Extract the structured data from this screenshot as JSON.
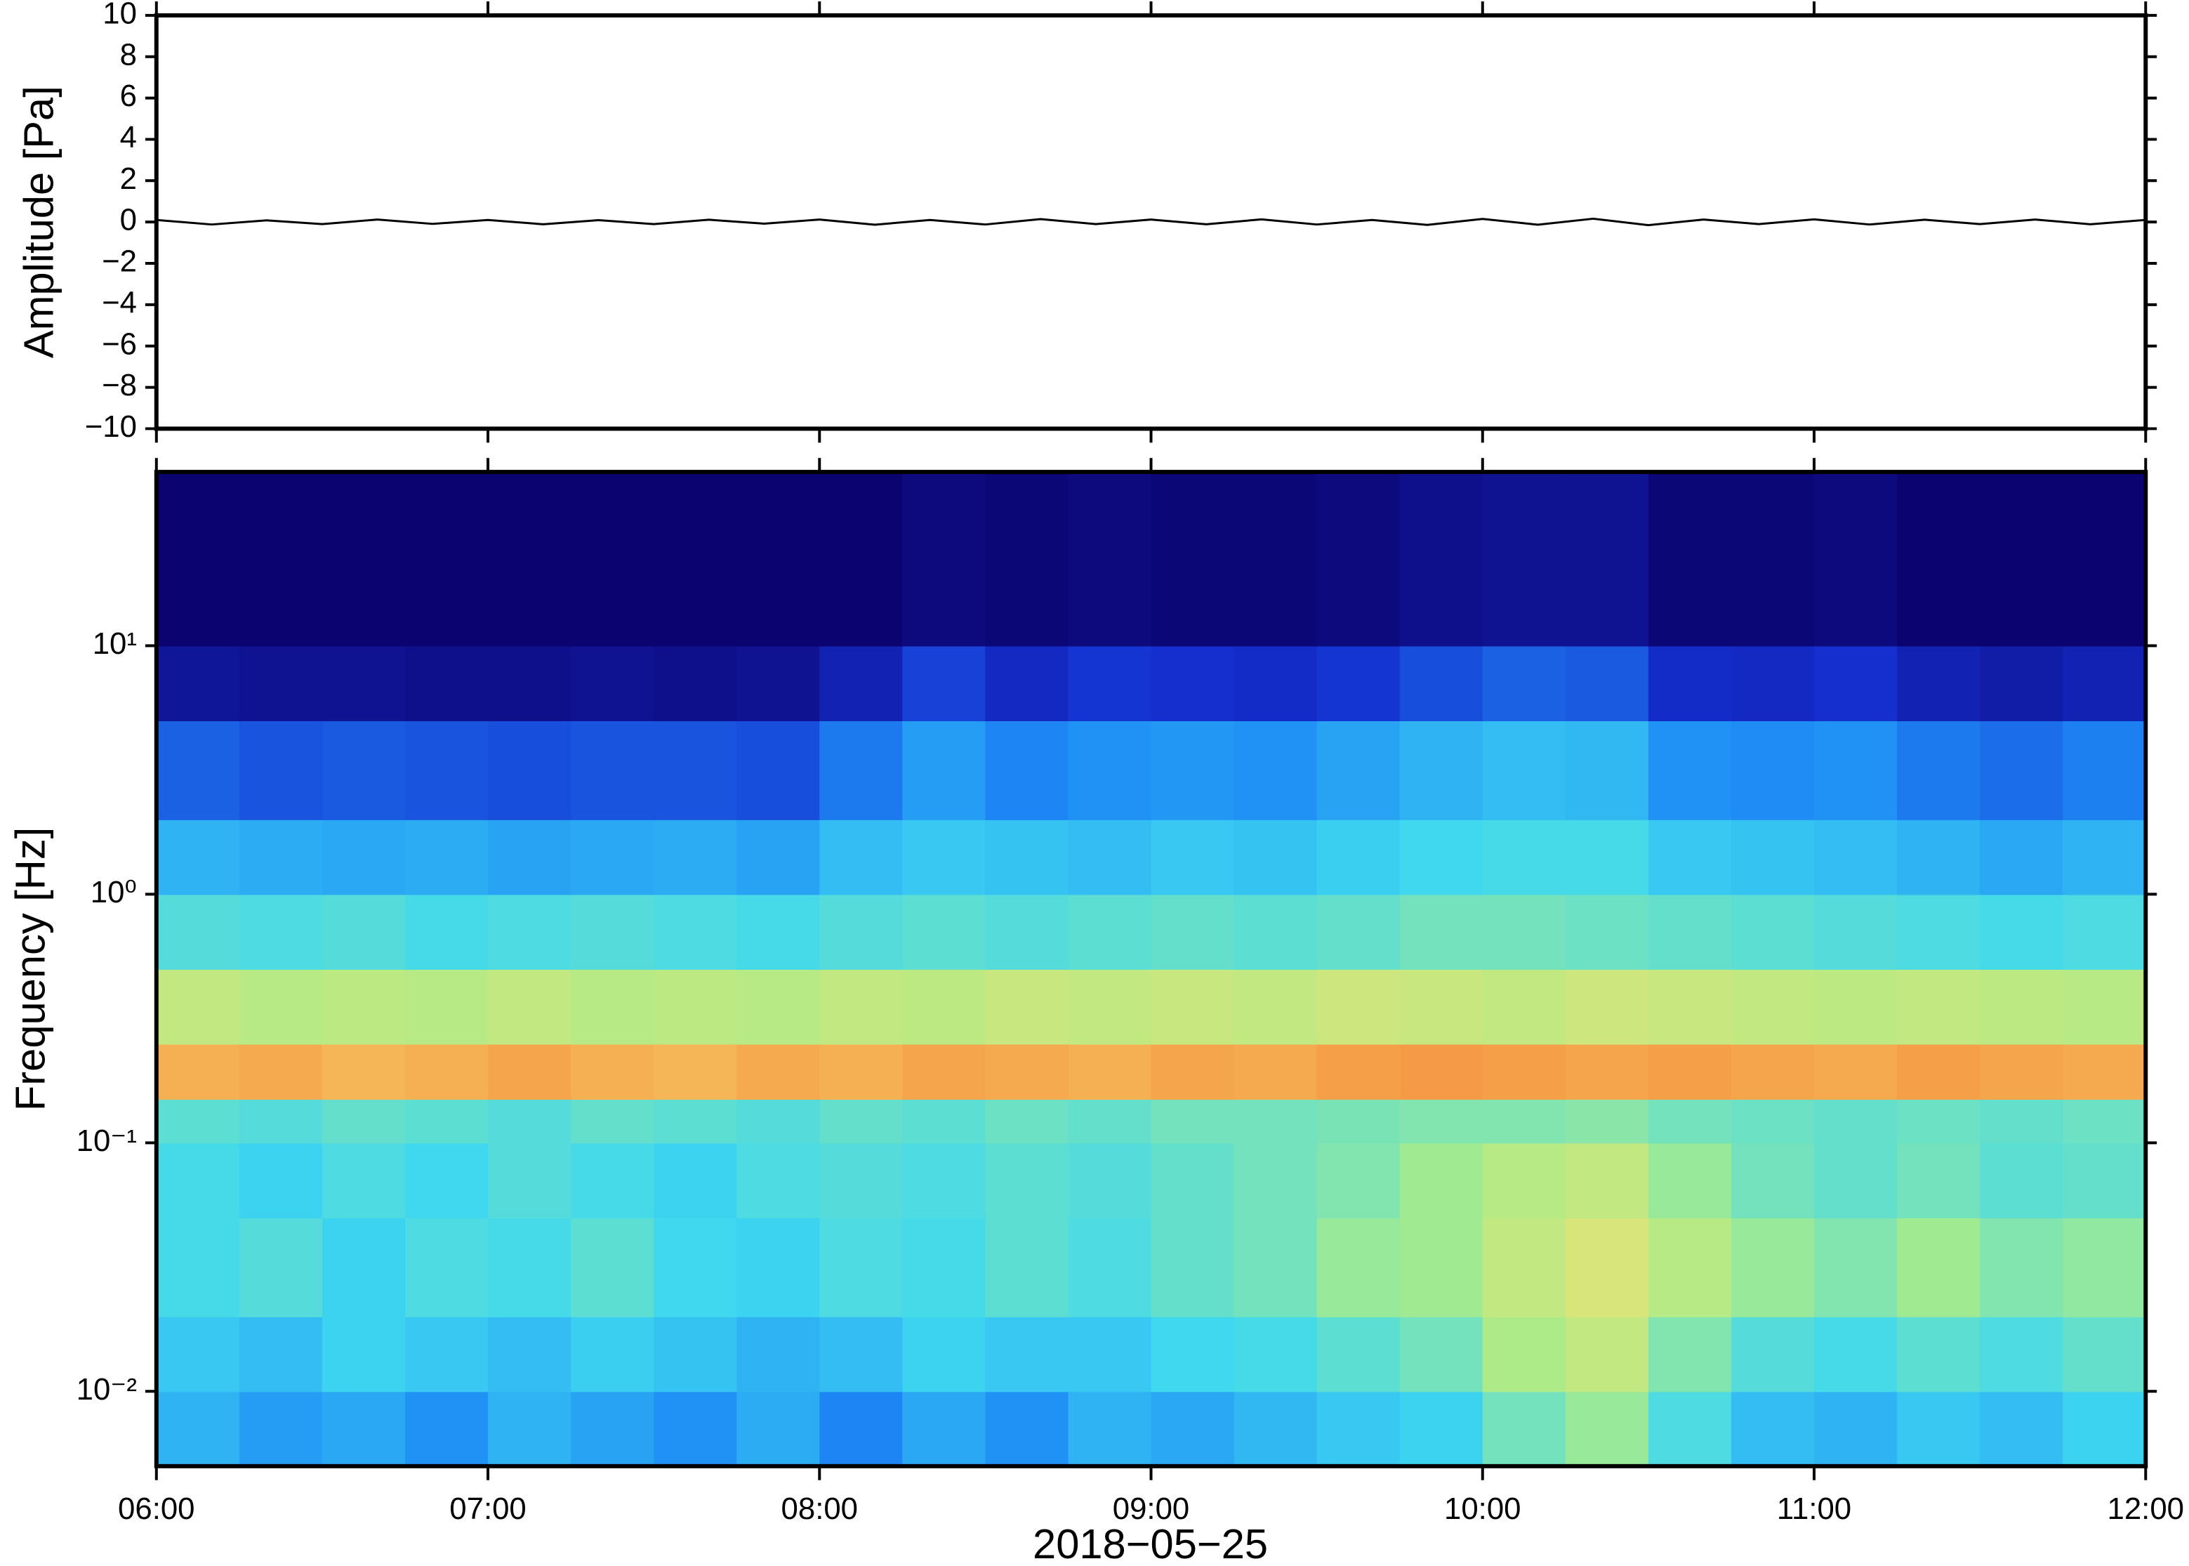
{
  "chart_data": [
    {
      "type": "line",
      "ylabel": "Amplitude [Pa]",
      "color": "#000000",
      "xlim": [
        "06:00",
        "12:00"
      ],
      "xticks": [
        "06:00",
        "07:00",
        "08:00",
        "09:00",
        "10:00",
        "11:00",
        "12:00"
      ],
      "ylim": [
        -10,
        10
      ],
      "yticks": [
        {
          "value": -10,
          "label": "−10"
        },
        {
          "value": -8,
          "label": "−8"
        },
        {
          "value": -6,
          "label": "−6"
        },
        {
          "value": -4,
          "label": "−4"
        },
        {
          "value": -2,
          "label": "−2"
        },
        0,
        2,
        4,
        6,
        8,
        10
      ],
      "x": [
        "06:00",
        "06:10",
        "06:20",
        "06:30",
        "06:40",
        "06:50",
        "07:00",
        "07:10",
        "07:20",
        "07:30",
        "07:40",
        "07:50",
        "08:00",
        "08:10",
        "08:20",
        "08:30",
        "08:40",
        "08:50",
        "09:00",
        "09:10",
        "09:20",
        "09:30",
        "09:40",
        "09:50",
        "10:00",
        "10:10",
        "10:20",
        "10:30",
        "10:40",
        "10:50",
        "11:00",
        "11:10",
        "11:20",
        "11:30",
        "11:40",
        "11:50",
        "12:00"
      ],
      "values": [
        0.1,
        -0.12,
        0.08,
        -0.1,
        0.12,
        -0.09,
        0.1,
        -0.11,
        0.09,
        -0.1,
        0.11,
        -0.08,
        0.12,
        -0.13,
        0.1,
        -0.12,
        0.14,
        -0.1,
        0.12,
        -0.11,
        0.13,
        -0.12,
        0.1,
        -0.14,
        0.15,
        -0.13,
        0.16,
        -0.15,
        0.12,
        -0.1,
        0.13,
        -0.12,
        0.11,
        -0.1,
        0.12,
        -0.11,
        0.1
      ]
    },
    {
      "type": "heatmap",
      "ylabel": "Frequency [Hz]",
      "xlabel": "2018−05−25",
      "log_y": true,
      "colormap": [
        "#0b0470",
        "#1530d0",
        "#1e8af5",
        "#3ed8f0",
        "#a8ec8a",
        "#f5e070",
        "#f59040",
        "#e03020"
      ],
      "xlim": [
        "06:00",
        "12:00"
      ],
      "xticks": [
        "06:00",
        "07:00",
        "08:00",
        "09:00",
        "10:00",
        "11:00",
        "12:00"
      ],
      "ylim": [
        0.005,
        50
      ],
      "yticks": [
        {
          "value": 0.01,
          "label": "10⁻²"
        },
        {
          "value": 0.1,
          "label": "10⁻¹"
        },
        {
          "value": 1,
          "label": "10⁰"
        },
        {
          "value": 10,
          "label": "10¹"
        }
      ],
      "x": [
        "06:00",
        "06:15",
        "06:30",
        "06:45",
        "07:00",
        "07:15",
        "07:30",
        "07:45",
        "08:00",
        "08:15",
        "08:30",
        "08:45",
        "09:00",
        "09:15",
        "09:30",
        "09:45",
        "10:00",
        "10:15",
        "10:30",
        "10:45",
        "11:00",
        "11:15",
        "11:30",
        "11:45",
        "12:00"
      ],
      "frequencies": [
        0.005,
        0.01,
        0.02,
        0.05,
        0.1,
        0.15,
        0.25,
        0.5,
        1,
        2,
        5,
        10,
        50
      ],
      "z": [
        [
          0.36,
          0.32,
          0.34,
          0.3,
          0.36,
          0.33,
          0.3,
          0.35,
          0.28,
          0.34,
          0.3,
          0.36,
          0.34,
          0.37,
          0.4,
          0.42,
          0.5,
          0.55,
          0.45,
          0.38,
          0.36,
          0.4,
          0.38,
          0.42
        ],
        [
          0.4,
          0.38,
          0.42,
          0.4,
          0.38,
          0.41,
          0.39,
          0.36,
          0.38,
          0.42,
          0.4,
          0.4,
          0.43,
          0.44,
          0.47,
          0.5,
          0.58,
          0.62,
          0.52,
          0.46,
          0.44,
          0.47,
          0.45,
          0.48
        ],
        [
          0.44,
          0.46,
          0.42,
          0.45,
          0.44,
          0.47,
          0.43,
          0.42,
          0.45,
          0.44,
          0.47,
          0.45,
          0.48,
          0.5,
          0.55,
          0.56,
          0.62,
          0.66,
          0.6,
          0.55,
          0.52,
          0.56,
          0.52,
          0.54
        ],
        [
          0.44,
          0.42,
          0.45,
          0.43,
          0.46,
          0.44,
          0.42,
          0.45,
          0.46,
          0.45,
          0.47,
          0.46,
          0.48,
          0.5,
          0.52,
          0.56,
          0.6,
          0.62,
          0.55,
          0.5,
          0.48,
          0.5,
          0.47,
          0.48
        ],
        [
          0.47,
          0.46,
          0.48,
          0.47,
          0.46,
          0.48,
          0.47,
          0.46,
          0.48,
          0.47,
          0.49,
          0.48,
          0.5,
          0.5,
          0.51,
          0.52,
          0.52,
          0.53,
          0.5,
          0.49,
          0.48,
          0.49,
          0.48,
          0.49
        ],
        [
          0.8,
          0.81,
          0.79,
          0.8,
          0.82,
          0.8,
          0.79,
          0.81,
          0.8,
          0.82,
          0.81,
          0.8,
          0.82,
          0.81,
          0.83,
          0.84,
          0.83,
          0.82,
          0.83,
          0.82,
          0.81,
          0.83,
          0.82,
          0.81
        ],
        [
          0.62,
          0.6,
          0.61,
          0.6,
          0.62,
          0.6,
          0.61,
          0.6,
          0.62,
          0.61,
          0.63,
          0.62,
          0.63,
          0.62,
          0.64,
          0.63,
          0.62,
          0.64,
          0.63,
          0.62,
          0.61,
          0.62,
          0.61,
          0.6
        ],
        [
          0.46,
          0.45,
          0.46,
          0.44,
          0.45,
          0.46,
          0.45,
          0.44,
          0.46,
          0.47,
          0.46,
          0.47,
          0.48,
          0.47,
          0.48,
          0.5,
          0.5,
          0.49,
          0.48,
          0.47,
          0.46,
          0.45,
          0.44,
          0.45
        ],
        [
          0.36,
          0.35,
          0.34,
          0.35,
          0.33,
          0.34,
          0.35,
          0.33,
          0.38,
          0.4,
          0.39,
          0.38,
          0.4,
          0.39,
          0.41,
          0.43,
          0.44,
          0.44,
          0.4,
          0.39,
          0.38,
          0.36,
          0.34,
          0.36
        ],
        [
          0.22,
          0.2,
          0.21,
          0.2,
          0.19,
          0.2,
          0.2,
          0.19,
          0.26,
          0.32,
          0.28,
          0.3,
          0.31,
          0.3,
          0.33,
          0.36,
          0.38,
          0.37,
          0.3,
          0.29,
          0.3,
          0.26,
          0.24,
          0.27
        ],
        [
          0.06,
          0.05,
          0.05,
          0.04,
          0.04,
          0.05,
          0.04,
          0.05,
          0.1,
          0.17,
          0.12,
          0.15,
          0.14,
          0.13,
          0.15,
          0.19,
          0.22,
          0.21,
          0.13,
          0.12,
          0.14,
          0.1,
          0.08,
          0.1
        ],
        [
          0,
          0,
          0,
          0,
          0,
          0,
          0,
          0,
          0,
          0.02,
          0.01,
          0.02,
          0.01,
          0.01,
          0.02,
          0.04,
          0.05,
          0.05,
          0.01,
          0.01,
          0.02,
          0,
          0,
          0
        ]
      ]
    }
  ]
}
